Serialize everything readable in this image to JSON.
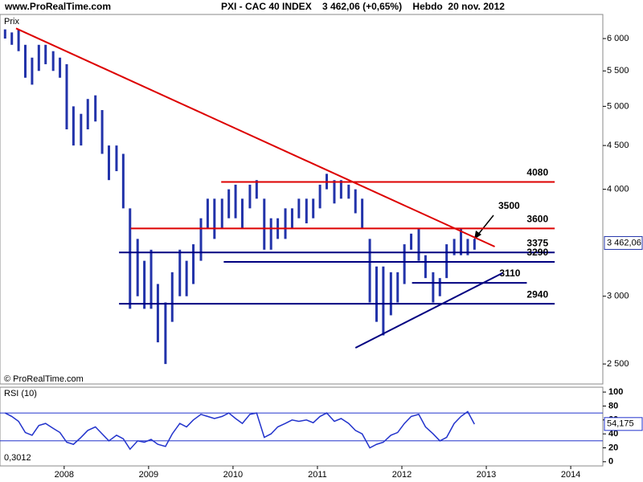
{
  "chart_data": [
    {
      "type": "hilo",
      "source": "www.ProRealTime.com",
      "title": "PXI - CAC 40 INDEX    3 462,06 (+0,65%)    Hebdo  20 nov. 2012",
      "y_label": "Prix",
      "watermark": "© ProRealTime.com",
      "log_scale": true,
      "color": "#2233aa",
      "xlim": [
        2007.24,
        2014.38
      ],
      "ylim": [
        2369,
        6402
      ],
      "yticks": [
        {
          "value": 2500,
          "label": "2 500"
        },
        {
          "value": 3000,
          "label": "3 000"
        },
        {
          "value": 4000,
          "label": "4 000"
        },
        {
          "value": 4500,
          "label": "4 500"
        },
        {
          "value": 5000,
          "label": "5 000"
        },
        {
          "value": 5500,
          "label": "5 500"
        },
        {
          "value": 6000,
          "label": "6 000"
        }
      ],
      "x": [
        2007.3,
        2007.38,
        2007.46,
        2007.54,
        2007.62,
        2007.7,
        2007.78,
        2007.87,
        2007.95,
        2008.03,
        2008.11,
        2008.2,
        2008.28,
        2008.37,
        2008.45,
        2008.53,
        2008.62,
        2008.7,
        2008.78,
        2008.87,
        2008.95,
        2009.03,
        2009.11,
        2009.2,
        2009.28,
        2009.37,
        2009.45,
        2009.53,
        2009.62,
        2009.7,
        2009.78,
        2009.87,
        2009.95,
        2010.03,
        2010.11,
        2010.2,
        2010.28,
        2010.37,
        2010.45,
        2010.53,
        2010.62,
        2010.7,
        2010.78,
        2010.87,
        2010.95,
        2011.03,
        2011.11,
        2011.2,
        2011.28,
        2011.37,
        2011.45,
        2011.53,
        2011.62,
        2011.7,
        2011.78,
        2011.87,
        2011.95,
        2012.03,
        2012.11,
        2012.2,
        2012.28,
        2012.37,
        2012.45,
        2012.53,
        2012.62,
        2012.7,
        2012.78,
        2012.86
      ],
      "low": [
        6000,
        5900,
        5800,
        5400,
        5300,
        5500,
        5600,
        5500,
        5400,
        4700,
        4500,
        4500,
        4700,
        4800,
        4400,
        4100,
        4200,
        3800,
        2900,
        3000,
        2900,
        2900,
        2650,
        2500,
        2800,
        3000,
        3000,
        3100,
        3300,
        3600,
        3500,
        3600,
        3700,
        3700,
        3600,
        3800,
        3900,
        3400,
        3400,
        3500,
        3500,
        3600,
        3700,
        3650,
        3700,
        3800,
        4000,
        3850,
        3900,
        3900,
        3750,
        3600,
        2950,
        2800,
        2700,
        2850,
        2950,
        3100,
        3400,
        3300,
        3150,
        2950,
        3000,
        3150,
        3350,
        3350,
        3350,
        3400
      ],
      "high": [
        6150,
        6100,
        6150,
        5900,
        5700,
        5900,
        5900,
        5800,
        5700,
        5600,
        5000,
        4900,
        5100,
        5150,
        4950,
        4500,
        4500,
        4400,
        3800,
        3500,
        3300,
        3400,
        3100,
        2950,
        3200,
        3400,
        3300,
        3450,
        3700,
        3900,
        3900,
        3900,
        4000,
        4050,
        3900,
        4050,
        4100,
        3900,
        3700,
        3700,
        3800,
        3800,
        3900,
        3900,
        3900,
        4050,
        4170,
        4100,
        4100,
        4050,
        4000,
        3900,
        3500,
        3250,
        3250,
        3200,
        3200,
        3450,
        3550,
        3600,
        3350,
        3200,
        3150,
        3450,
        3500,
        3600,
        3500,
        3500
      ],
      "last": {
        "value": 3462.06,
        "label": "3 462,06"
      },
      "levels": [
        {
          "value": 4080,
          "color": "#dd0000",
          "x": [
            2009.86,
            2013.81
          ]
        },
        {
          "value": 3600,
          "color": "#dd0000",
          "x": [
            2008.79,
            2013.81
          ]
        },
        {
          "value": 3375,
          "color": "#000080",
          "x": [
            2008.65,
            2013.81
          ]
        },
        {
          "value": 3290,
          "color": "#000080",
          "x": [
            2009.89,
            2013.81
          ]
        },
        {
          "value": 3110,
          "color": "#000080",
          "x": [
            2012.12,
            2013.48
          ]
        },
        {
          "value": 2940,
          "color": "#000080",
          "x": [
            2008.65,
            2013.81
          ]
        }
      ],
      "trendlines": [
        {
          "color": "#dd0000",
          "x": [
            2007.43,
            2013.1
          ],
          "y": [
            6167,
            3428
          ]
        },
        {
          "color": "#000080",
          "x": [
            2011.45,
            2013.19
          ],
          "y": [
            2611,
            3192
          ]
        }
      ],
      "annotations": [
        "3500"
      ]
    },
    {
      "type": "line",
      "title": "RSI (10)",
      "corner_label": "0,3012",
      "color": "#2233cc",
      "xlim": [
        2007.24,
        2014.38
      ],
      "xticks": [
        2008,
        2009,
        2010,
        2011,
        2012,
        2013,
        2014
      ],
      "ylim": [
        -6,
        107
      ],
      "yticks": [
        0,
        20,
        40,
        60,
        80,
        100
      ],
      "levels": [
        70,
        30
      ],
      "last": {
        "value": 54.175,
        "label": "54,175"
      },
      "x": [
        2007.3,
        2007.38,
        2007.46,
        2007.54,
        2007.62,
        2007.7,
        2007.78,
        2007.87,
        2007.95,
        2008.03,
        2008.11,
        2008.2,
        2008.28,
        2008.37,
        2008.45,
        2008.53,
        2008.62,
        2008.7,
        2008.78,
        2008.87,
        2008.95,
        2009.03,
        2009.11,
        2009.2,
        2009.28,
        2009.37,
        2009.45,
        2009.53,
        2009.62,
        2009.7,
        2009.78,
        2009.87,
        2009.95,
        2010.03,
        2010.11,
        2010.2,
        2010.28,
        2010.37,
        2010.45,
        2010.53,
        2010.62,
        2010.7,
        2010.78,
        2010.87,
        2010.95,
        2011.03,
        2011.11,
        2011.2,
        2011.28,
        2011.37,
        2011.45,
        2011.53,
        2011.62,
        2011.7,
        2011.78,
        2011.87,
        2011.95,
        2012.03,
        2012.11,
        2012.2,
        2012.28,
        2012.37,
        2012.45,
        2012.53,
        2012.62,
        2012.7,
        2012.78,
        2012.86
      ],
      "values": [
        70,
        65,
        58,
        42,
        38,
        52,
        55,
        48,
        42,
        28,
        25,
        35,
        45,
        50,
        40,
        30,
        38,
        33,
        18,
        30,
        28,
        32,
        25,
        22,
        40,
        55,
        50,
        60,
        68,
        65,
        62,
        65,
        70,
        62,
        55,
        68,
        70,
        35,
        40,
        50,
        55,
        60,
        58,
        60,
        56,
        65,
        70,
        58,
        62,
        55,
        45,
        40,
        20,
        25,
        28,
        38,
        42,
        55,
        65,
        68,
        50,
        40,
        30,
        35,
        55,
        65,
        72,
        54
      ]
    }
  ]
}
